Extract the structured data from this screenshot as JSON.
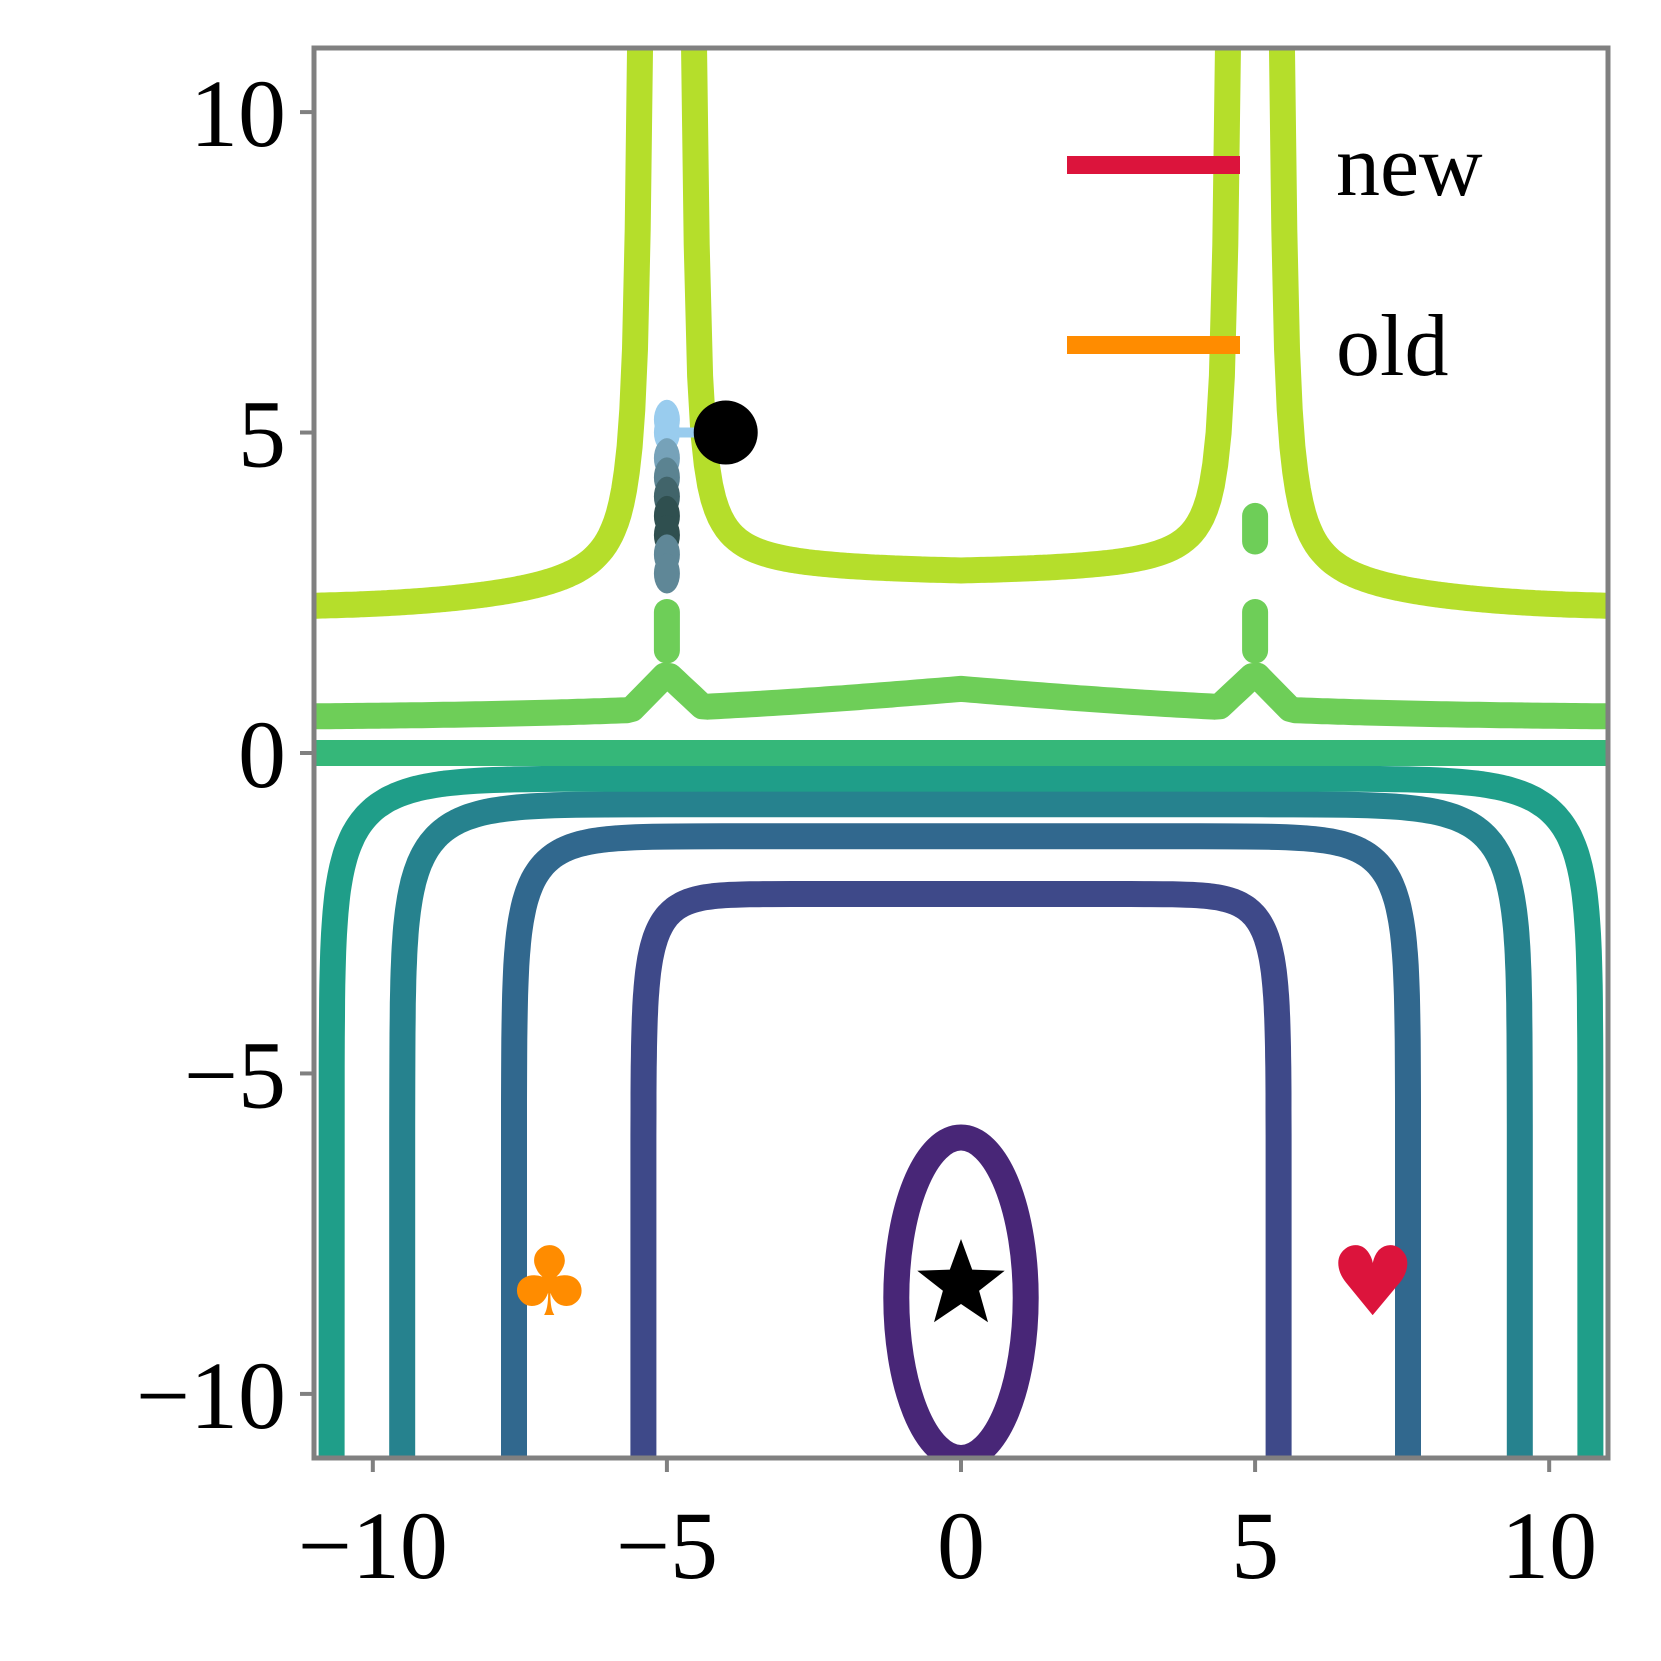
{
  "chart_data": {
    "type": "contour",
    "title": "",
    "xlabel": "",
    "ylabel": "",
    "xlim": [
      -11,
      11
    ],
    "ylim": [
      -11,
      11
    ],
    "x_ticks": [
      -10,
      -5,
      0,
      5,
      10
    ],
    "y_ticks": [
      10,
      5,
      0,
      -5,
      -10
    ],
    "x_tick_labels": [
      "−10",
      "−5",
      "0",
      "5",
      "10"
    ],
    "y_tick_labels": [
      "10",
      "5",
      "0",
      "−5",
      "−10"
    ],
    "grid": false,
    "legend": {
      "placement": "top-right",
      "entries": [
        {
          "label": "new",
          "color": "#dc143c"
        },
        {
          "label": "old",
          "color": "#ff8c00"
        }
      ]
    },
    "frame_color": "#808080",
    "contour_colormap": "viridis",
    "contour_levels": [
      {
        "color": "#482677",
        "shape": "ellipse",
        "x_half_width": 1.1,
        "y_top": -6.0
      },
      {
        "color": "#3e4989",
        "shape": "u",
        "x_half_width": 5.4,
        "y_top": -2.2
      },
      {
        "color": "#31688e",
        "shape": "u",
        "x_half_width": 7.6,
        "y_top": -1.3
      },
      {
        "color": "#26828e",
        "shape": "u",
        "x_half_width": 9.5,
        "y_top": -0.8
      },
      {
        "color": "#1f9e89",
        "shape": "u",
        "x_half_width": 10.7,
        "y_top": -0.4
      },
      {
        "color": "#35b779",
        "shape": "line",
        "y": 0.0
      },
      {
        "color": "#6ece58",
        "shape": "ridge",
        "y": 1.0
      },
      {
        "color": "#b5de2b",
        "shape": "cusp",
        "y_edge": 2.2
      }
    ],
    "trajectory": {
      "color_range": [
        "#99ccee",
        "#2f4f4f"
      ],
      "points": [
        {
          "x": -5.0,
          "y": 5.2
        },
        {
          "x": -5.0,
          "y": 5.0
        },
        {
          "x": -5.0,
          "y": 4.6
        },
        {
          "x": -5.0,
          "y": 4.3
        },
        {
          "x": -5.0,
          "y": 4.0
        },
        {
          "x": -5.0,
          "y": 3.7
        },
        {
          "x": -5.0,
          "y": 3.4
        },
        {
          "x": -5.0,
          "y": 3.1
        },
        {
          "x": -5.0,
          "y": 2.8
        }
      ]
    },
    "markers": [
      {
        "name": "start-point",
        "symbol": "circle",
        "x": -4.0,
        "y": 5.0,
        "color": "#000000"
      },
      {
        "name": "optimum-star",
        "symbol": "star",
        "x": 0.0,
        "y": -8.3,
        "color": "#000000"
      },
      {
        "name": "old-club-marker",
        "symbol": "♣",
        "x": -7.0,
        "y": -8.3,
        "color": "#ff8c00"
      },
      {
        "name": "new-heart-marker",
        "symbol": "♥",
        "x": 7.0,
        "y": -8.3,
        "color": "#dc143c"
      }
    ]
  }
}
